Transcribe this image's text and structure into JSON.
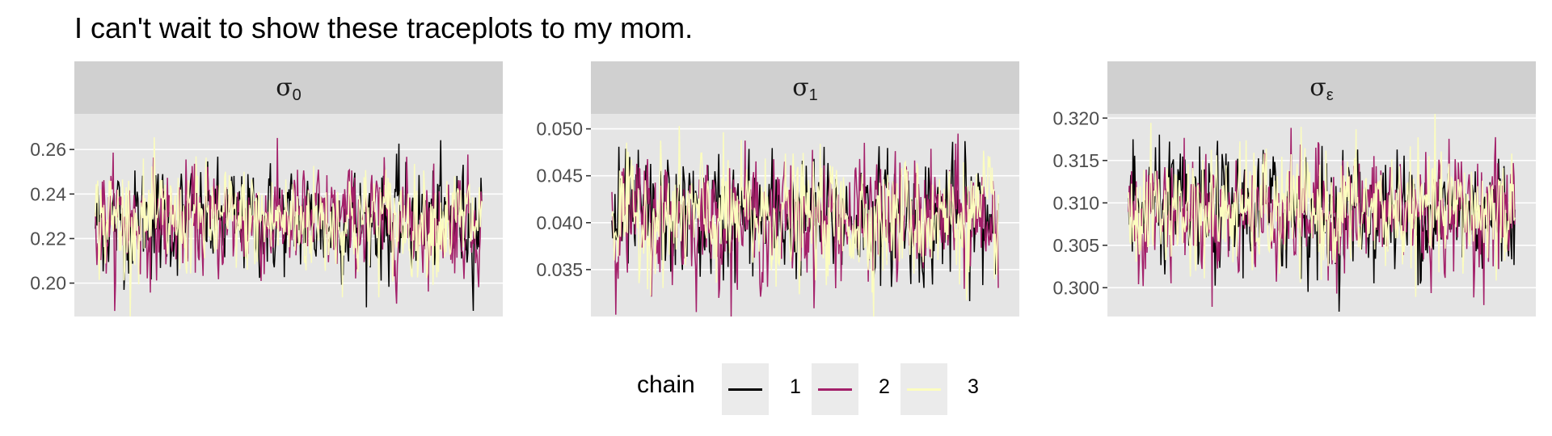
{
  "title": "I can't wait to show these traceplots to my mom.",
  "chart_data": {
    "type": "line",
    "facets": [
      {
        "strip": "σ",
        "sub": "0",
        "yticks": [
          0.2,
          0.22,
          0.24,
          0.26
        ],
        "tick_labels": [
          "0.20",
          "0.22",
          "0.24",
          "0.26"
        ],
        "ylim": [
          0.185,
          0.276
        ],
        "mean": 0.228,
        "sd": 0.012
      },
      {
        "strip": "σ",
        "sub": "1",
        "yticks": [
          0.035,
          0.04,
          0.045,
          0.05
        ],
        "tick_labels": [
          "0.035",
          "0.040",
          "0.045",
          "0.050"
        ],
        "ylim": [
          0.03,
          0.0516
        ],
        "mean": 0.0405,
        "sd": 0.0032
      },
      {
        "strip": "σ",
        "sub": "ε",
        "yticks": [
          0.3,
          0.305,
          0.31,
          0.315,
          0.32
        ],
        "tick_labels": [
          "0.300",
          "0.305",
          "0.310",
          "0.315",
          "0.320"
        ],
        "ylim": [
          0.2966,
          0.3205
        ],
        "mean": 0.309,
        "sd": 0.0035
      }
    ],
    "series": [
      {
        "name": "1",
        "color": "#000000"
      },
      {
        "name": "2",
        "color": "#A3206A"
      },
      {
        "name": "3",
        "color": "#FCFDBF"
      }
    ],
    "legend": {
      "title": "chain",
      "position": "bottom"
    },
    "panel_background": "#E5E5E5",
    "strip_background": "#D0D0D0",
    "grid": true
  }
}
